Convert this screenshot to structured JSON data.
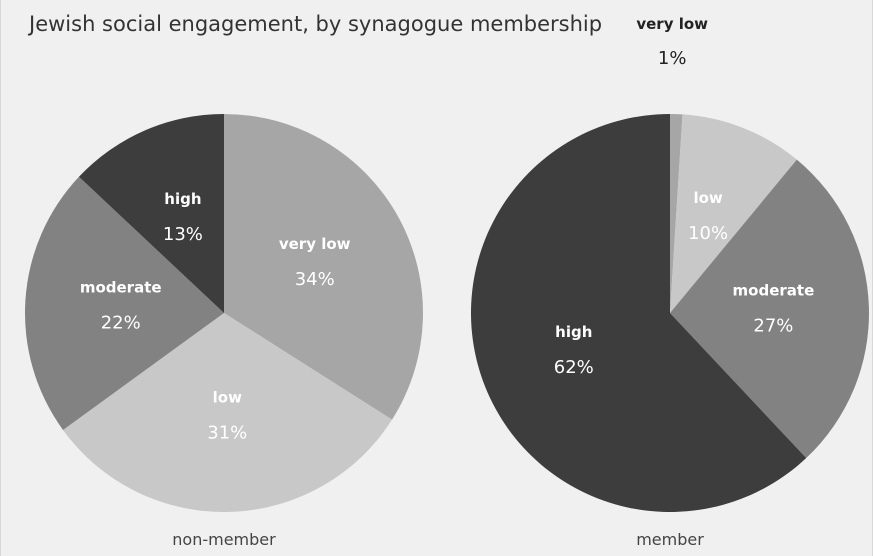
{
  "title": "Jewish social engagement, by synagogue membership",
  "colors": {
    "background": "#f0f0f0",
    "very low": "#a6a6a6",
    "low": "#c8c8c8",
    "moderate": "#828282",
    "high": "#3d3d3d"
  },
  "chart_data": [
    {
      "type": "pie",
      "caption": "non-member",
      "slices": [
        {
          "label": "very low",
          "value": 34,
          "display": "34%"
        },
        {
          "label": "low",
          "value": 31,
          "display": "31%"
        },
        {
          "label": "moderate",
          "value": 22,
          "display": "22%"
        },
        {
          "label": "high",
          "value": 13,
          "display": "13%"
        }
      ]
    },
    {
      "type": "pie",
      "caption": "member",
      "slices": [
        {
          "label": "very low",
          "value": 1,
          "display": "1%"
        },
        {
          "label": "low",
          "value": 10,
          "display": "10%"
        },
        {
          "label": "moderate",
          "value": 27,
          "display": "27%"
        },
        {
          "label": "high",
          "value": 62,
          "display": "62%"
        }
      ]
    }
  ]
}
